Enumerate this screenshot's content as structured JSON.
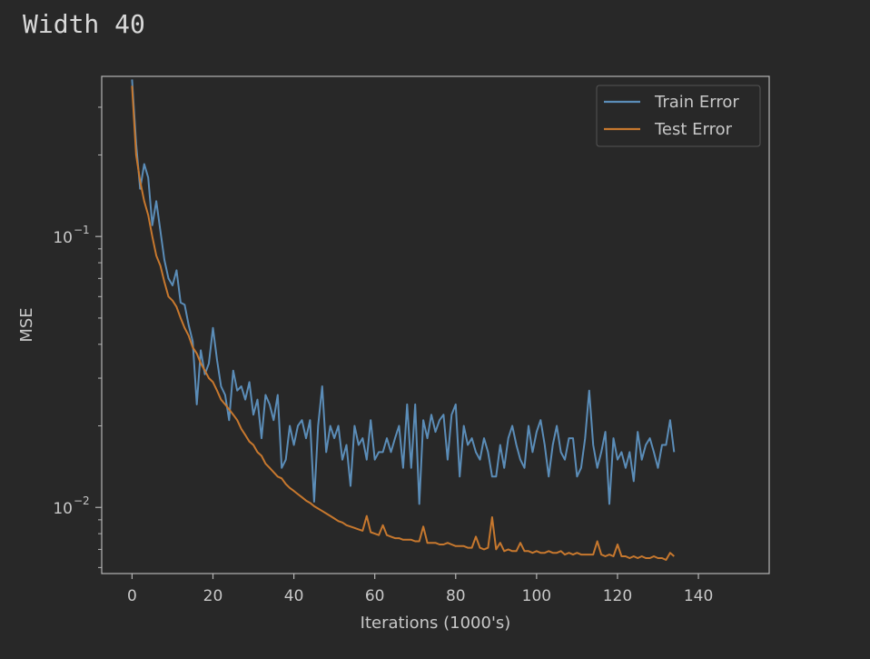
{
  "header": {
    "title": "Width 40"
  },
  "colors": {
    "background": "#282828",
    "train": "#5b8db8",
    "test": "#c7782e",
    "axis": "#b4b4b4"
  },
  "chart_data": {
    "type": "line",
    "title": "",
    "xlabel": "Iterations (1000's)",
    "ylabel": "MSE",
    "xlim": [
      -7.5,
      157.5
    ],
    "ylim": [
      0.0057,
      0.39
    ],
    "yscale": "log",
    "xticks": [
      0,
      20,
      40,
      60,
      80,
      100,
      120,
      140
    ],
    "xtick_labels": [
      "0",
      "20",
      "40",
      "60",
      "80",
      "100",
      "120",
      "140"
    ],
    "ytick_labels": [
      {
        "value": 0.1,
        "base": "10",
        "exp": "−1"
      },
      {
        "value": 0.01,
        "base": "10",
        "exp": "−2"
      }
    ],
    "legend_position": "top-right",
    "grid": false,
    "series": [
      {
        "name": "Train Error",
        "color": "#5b8db8",
        "points": [
          [
            0,
            0.38
          ],
          [
            1,
            0.22
          ],
          [
            2,
            0.15
          ],
          [
            3,
            0.185
          ],
          [
            4,
            0.165
          ],
          [
            5,
            0.11
          ],
          [
            6,
            0.135
          ],
          [
            7,
            0.105
          ],
          [
            8,
            0.082
          ],
          [
            9,
            0.07
          ],
          [
            10,
            0.066
          ],
          [
            11,
            0.075
          ],
          [
            12,
            0.057
          ],
          [
            13,
            0.056
          ],
          [
            14,
            0.047
          ],
          [
            15,
            0.041
          ],
          [
            16,
            0.024
          ],
          [
            17,
            0.038
          ],
          [
            18,
            0.031
          ],
          [
            19,
            0.034
          ],
          [
            20,
            0.046
          ],
          [
            21,
            0.035
          ],
          [
            22,
            0.028
          ],
          [
            23,
            0.026
          ],
          [
            24,
            0.021
          ],
          [
            25,
            0.032
          ],
          [
            26,
            0.027
          ],
          [
            27,
            0.028
          ],
          [
            28,
            0.025
          ],
          [
            29,
            0.029
          ],
          [
            30,
            0.022
          ],
          [
            31,
            0.025
          ],
          [
            32,
            0.018
          ],
          [
            33,
            0.026
          ],
          [
            34,
            0.024
          ],
          [
            35,
            0.021
          ],
          [
            36,
            0.026
          ],
          [
            37,
            0.014
          ],
          [
            38,
            0.015
          ],
          [
            39,
            0.02
          ],
          [
            40,
            0.017
          ],
          [
            41,
            0.02
          ],
          [
            42,
            0.021
          ],
          [
            43,
            0.018
          ],
          [
            44,
            0.021
          ],
          [
            45,
            0.0105
          ],
          [
            46,
            0.02
          ],
          [
            47,
            0.028
          ],
          [
            48,
            0.016
          ],
          [
            49,
            0.02
          ],
          [
            50,
            0.018
          ],
          [
            51,
            0.02
          ],
          [
            52,
            0.015
          ],
          [
            53,
            0.017
          ],
          [
            54,
            0.012
          ],
          [
            55,
            0.02
          ],
          [
            56,
            0.017
          ],
          [
            57,
            0.018
          ],
          [
            58,
            0.015
          ],
          [
            59,
            0.021
          ],
          [
            60,
            0.015
          ],
          [
            61,
            0.016
          ],
          [
            62,
            0.016
          ],
          [
            63,
            0.018
          ],
          [
            64,
            0.016
          ],
          [
            65,
            0.018
          ],
          [
            66,
            0.02
          ],
          [
            67,
            0.014
          ],
          [
            68,
            0.024
          ],
          [
            69,
            0.014
          ],
          [
            70,
            0.024
          ],
          [
            71,
            0.0103
          ],
          [
            72,
            0.021
          ],
          [
            73,
            0.018
          ],
          [
            74,
            0.022
          ],
          [
            75,
            0.019
          ],
          [
            76,
            0.021
          ],
          [
            77,
            0.022
          ],
          [
            78,
            0.015
          ],
          [
            79,
            0.022
          ],
          [
            80,
            0.024
          ],
          [
            81,
            0.013
          ],
          [
            82,
            0.02
          ],
          [
            83,
            0.017
          ],
          [
            84,
            0.018
          ],
          [
            85,
            0.016
          ],
          [
            86,
            0.015
          ],
          [
            87,
            0.018
          ],
          [
            88,
            0.016
          ],
          [
            89,
            0.013
          ],
          [
            90,
            0.013
          ],
          [
            91,
            0.017
          ],
          [
            92,
            0.014
          ],
          [
            93,
            0.018
          ],
          [
            94,
            0.02
          ],
          [
            95,
            0.017
          ],
          [
            96,
            0.015
          ],
          [
            97,
            0.014
          ],
          [
            98,
            0.02
          ],
          [
            99,
            0.016
          ],
          [
            100,
            0.019
          ],
          [
            101,
            0.021
          ],
          [
            102,
            0.017
          ],
          [
            103,
            0.013
          ],
          [
            104,
            0.017
          ],
          [
            105,
            0.02
          ],
          [
            106,
            0.016
          ],
          [
            107,
            0.015
          ],
          [
            108,
            0.018
          ],
          [
            109,
            0.018
          ],
          [
            110,
            0.013
          ],
          [
            111,
            0.014
          ],
          [
            112,
            0.018
          ],
          [
            113,
            0.027
          ],
          [
            114,
            0.017
          ],
          [
            115,
            0.014
          ],
          [
            116,
            0.016
          ],
          [
            117,
            0.019
          ],
          [
            118,
            0.0103
          ],
          [
            119,
            0.018
          ],
          [
            120,
            0.015
          ],
          [
            121,
            0.016
          ],
          [
            122,
            0.014
          ],
          [
            123,
            0.016
          ],
          [
            124,
            0.0125
          ],
          [
            125,
            0.019
          ],
          [
            126,
            0.015
          ],
          [
            127,
            0.017
          ],
          [
            128,
            0.018
          ],
          [
            129,
            0.016
          ],
          [
            130,
            0.014
          ],
          [
            131,
            0.017
          ],
          [
            132,
            0.017
          ],
          [
            133,
            0.021
          ],
          [
            134,
            0.016
          ]
        ]
      },
      {
        "name": "Test Error",
        "color": "#c7782e",
        "points": [
          [
            0,
            0.36
          ],
          [
            1,
            0.2
          ],
          [
            2,
            0.16
          ],
          [
            3,
            0.135
          ],
          [
            4,
            0.12
          ],
          [
            5,
            0.1
          ],
          [
            6,
            0.085
          ],
          [
            7,
            0.078
          ],
          [
            8,
            0.068
          ],
          [
            9,
            0.06
          ],
          [
            10,
            0.058
          ],
          [
            11,
            0.055
          ],
          [
            12,
            0.05
          ],
          [
            13,
            0.046
          ],
          [
            14,
            0.043
          ],
          [
            15,
            0.039
          ],
          [
            16,
            0.037
          ],
          [
            17,
            0.034
          ],
          [
            18,
            0.032
          ],
          [
            19,
            0.03
          ],
          [
            20,
            0.029
          ],
          [
            21,
            0.027
          ],
          [
            22,
            0.025
          ],
          [
            23,
            0.024
          ],
          [
            24,
            0.023
          ],
          [
            25,
            0.022
          ],
          [
            26,
            0.021
          ],
          [
            27,
            0.0195
          ],
          [
            28,
            0.0185
          ],
          [
            29,
            0.0175
          ],
          [
            30,
            0.017
          ],
          [
            31,
            0.016
          ],
          [
            32,
            0.0155
          ],
          [
            33,
            0.0145
          ],
          [
            34,
            0.014
          ],
          [
            35,
            0.0135
          ],
          [
            36,
            0.013
          ],
          [
            37,
            0.0128
          ],
          [
            38,
            0.0122
          ],
          [
            39,
            0.0118
          ],
          [
            40,
            0.0115
          ],
          [
            41,
            0.0112
          ],
          [
            42,
            0.0109
          ],
          [
            43,
            0.0106
          ],
          [
            44,
            0.0104
          ],
          [
            45,
            0.0101
          ],
          [
            46,
            0.0099
          ],
          [
            47,
            0.0097
          ],
          [
            48,
            0.0095
          ],
          [
            49,
            0.0093
          ],
          [
            50,
            0.0091
          ],
          [
            51,
            0.0089
          ],
          [
            52,
            0.0088
          ],
          [
            53,
            0.0086
          ],
          [
            54,
            0.0085
          ],
          [
            55,
            0.0084
          ],
          [
            56,
            0.0083
          ],
          [
            57,
            0.0082
          ],
          [
            58,
            0.0093
          ],
          [
            59,
            0.0081
          ],
          [
            60,
            0.008
          ],
          [
            61,
            0.0079
          ],
          [
            62,
            0.0086
          ],
          [
            63,
            0.0079
          ],
          [
            64,
            0.0078
          ],
          [
            65,
            0.0077
          ],
          [
            66,
            0.0077
          ],
          [
            67,
            0.0076
          ],
          [
            68,
            0.0076
          ],
          [
            69,
            0.0076
          ],
          [
            70,
            0.0075
          ],
          [
            71,
            0.0075
          ],
          [
            72,
            0.0085
          ],
          [
            73,
            0.0074
          ],
          [
            74,
            0.0074
          ],
          [
            75,
            0.0074
          ],
          [
            76,
            0.0073
          ],
          [
            77,
            0.0073
          ],
          [
            78,
            0.0074
          ],
          [
            79,
            0.0073
          ],
          [
            80,
            0.0072
          ],
          [
            81,
            0.0072
          ],
          [
            82,
            0.0072
          ],
          [
            83,
            0.0071
          ],
          [
            84,
            0.0071
          ],
          [
            85,
            0.0078
          ],
          [
            86,
            0.0071
          ],
          [
            87,
            0.007
          ],
          [
            88,
            0.0071
          ],
          [
            89,
            0.0092
          ],
          [
            90,
            0.007
          ],
          [
            91,
            0.0074
          ],
          [
            92,
            0.0069
          ],
          [
            93,
            0.007
          ],
          [
            94,
            0.0069
          ],
          [
            95,
            0.0069
          ],
          [
            96,
            0.0074
          ],
          [
            97,
            0.0069
          ],
          [
            98,
            0.0069
          ],
          [
            99,
            0.0068
          ],
          [
            100,
            0.0069
          ],
          [
            101,
            0.0068
          ],
          [
            102,
            0.0068
          ],
          [
            103,
            0.0069
          ],
          [
            104,
            0.0068
          ],
          [
            105,
            0.0068
          ],
          [
            106,
            0.0069
          ],
          [
            107,
            0.0067
          ],
          [
            108,
            0.0068
          ],
          [
            109,
            0.0067
          ],
          [
            110,
            0.0068
          ],
          [
            111,
            0.0067
          ],
          [
            112,
            0.0067
          ],
          [
            113,
            0.0067
          ],
          [
            114,
            0.0067
          ],
          [
            115,
            0.0075
          ],
          [
            116,
            0.0067
          ],
          [
            117,
            0.0066
          ],
          [
            118,
            0.0067
          ],
          [
            119,
            0.0066
          ],
          [
            120,
            0.0073
          ],
          [
            121,
            0.0066
          ],
          [
            122,
            0.0066
          ],
          [
            123,
            0.0065
          ],
          [
            124,
            0.0066
          ],
          [
            125,
            0.0065
          ],
          [
            126,
            0.0066
          ],
          [
            127,
            0.0065
          ],
          [
            128,
            0.0065
          ],
          [
            129,
            0.0066
          ],
          [
            130,
            0.0065
          ],
          [
            131,
            0.0065
          ],
          [
            132,
            0.0064
          ],
          [
            133,
            0.0068
          ],
          [
            134,
            0.0066
          ]
        ]
      }
    ]
  }
}
